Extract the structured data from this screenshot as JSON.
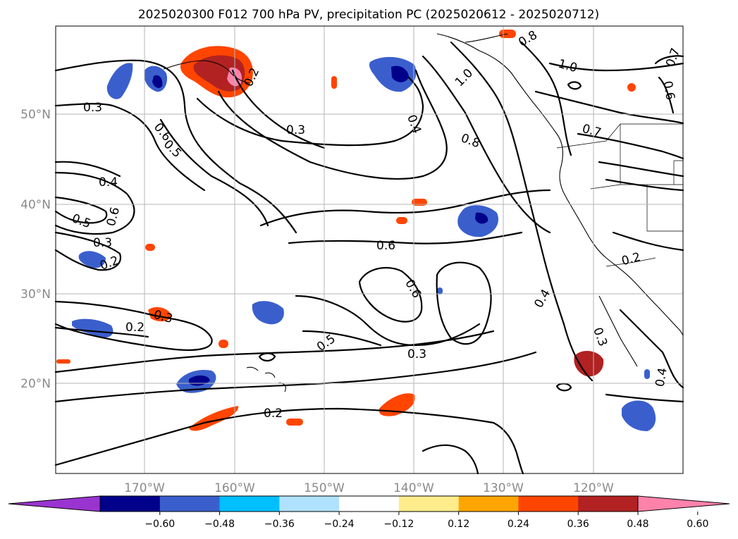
{
  "title": "2025020300 F012 700 hPa PV, precipitation PC (2025020612 - 2025020712)",
  "lon_labels": [
    "170°W",
    "160°W",
    "150°W",
    "140°W",
    "130°W",
    "120°W"
  ],
  "lat_labels": [
    "50°N",
    "40°N",
    "30°N",
    "20°N"
  ],
  "contour_labels": [
    "0.3",
    "0.6",
    "0.5",
    "0.2",
    "0.3",
    "0.4",
    "0.5",
    "0.6",
    "0.3",
    "0.2",
    "0.2",
    "0.3",
    "0.2",
    "0.6",
    "0.6",
    "0.5",
    "0.3",
    "0.4",
    "0.8",
    "1.0",
    "0.8",
    "1.0",
    "0.7",
    "0.7",
    "0.6",
    "0.2",
    "0.4",
    "0.3",
    "0.4"
  ],
  "colorbar": {
    "ticks": [
      "−0.60",
      "−0.48",
      "−0.36",
      "−0.24",
      "−0.12",
      "0.12",
      "0.24",
      "0.36",
      "0.48",
      "0.60"
    ],
    "colors": [
      "#9a34d0",
      "#00008b",
      "#3a5fcd",
      "#00bfff",
      "#b0e2ff",
      "#ffffff",
      "#ffec8b",
      "#ffa500",
      "#ff4500",
      "#b22222",
      "#ff82ab"
    ]
  }
}
